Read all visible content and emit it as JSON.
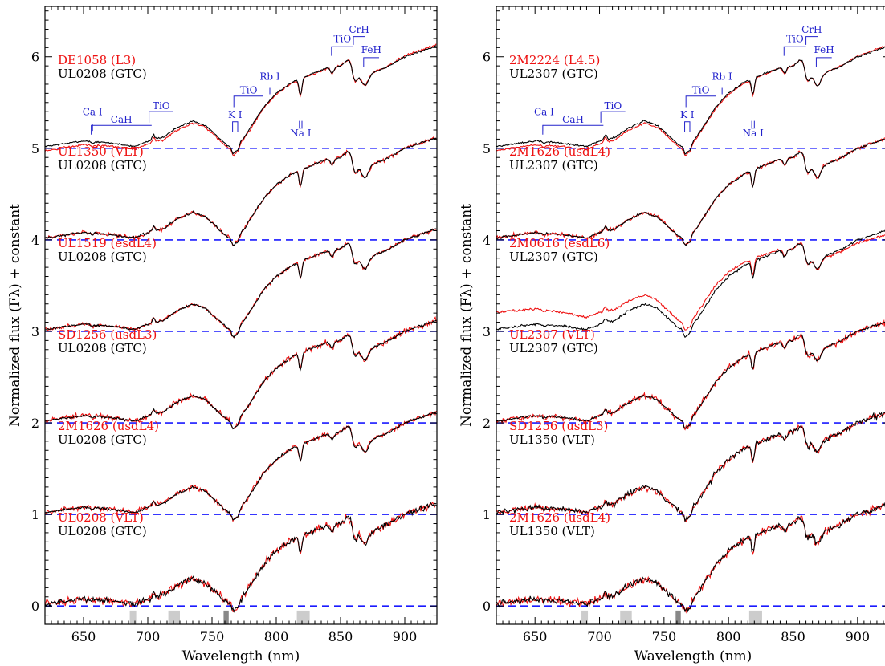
{
  "chart_data": [
    {
      "type": "line",
      "xlabel": "Wavelength (nm)",
      "ylabel": "Normalized flux (Fλ) + constant",
      "xlim": [
        620,
        925
      ],
      "ylim": [
        -0.2,
        6.55
      ],
      "xticks": [
        650,
        700,
        750,
        800,
        850,
        900
      ],
      "yticks": [
        0,
        1,
        2,
        3,
        4,
        5,
        6
      ],
      "telluric_bands": [
        {
          "x0": 686,
          "x1": 691,
          "shade": "light"
        },
        {
          "x0": 716,
          "x1": 725,
          "shade": "light"
        },
        {
          "x0": 759,
          "x1": 763,
          "shade": "dark"
        },
        {
          "x0": 816,
          "x1": 826,
          "shade": "light"
        }
      ],
      "features": [
        {
          "label": "Ca I",
          "type": "tick",
          "x": 657,
          "ylab": 5.36,
          "y1": 5.26,
          "y2": 5.19
        },
        {
          "label": "CaH",
          "type": "bracket",
          "x0": 656,
          "x1": 703,
          "ylab": 5.28,
          "yb": 5.25,
          "y2": 5.15
        },
        {
          "label": "TiO",
          "type": "bracket",
          "x0": 701,
          "x1": 720,
          "ylab": 5.43,
          "yb": 5.4,
          "y2": 5.28
        },
        {
          "label": "K I",
          "type": "double",
          "x0": 766,
          "x1": 770,
          "ylab": 5.33,
          "yb": 5.29,
          "y2": 5.18
        },
        {
          "label": "TiO",
          "type": "bracket",
          "x0": 767,
          "x1": 790,
          "ylab": 5.6,
          "yb": 5.57,
          "y2": 5.45
        },
        {
          "label": "Rb I",
          "type": "tick",
          "x": 795,
          "ylab": 5.75,
          "y1": 5.66,
          "y2": 5.59
        },
        {
          "label": "Na I",
          "type": "double-down",
          "x0": 818,
          "x1": 820,
          "ylab": 5.13,
          "yb": 5.3,
          "y2": 5.22
        },
        {
          "label": "TiO",
          "type": "bracket",
          "x0": 843,
          "x1": 860,
          "ylab": 6.16,
          "yb": 6.11,
          "y2": 6.01
        },
        {
          "label": "CrH",
          "type": "bracket",
          "x0": 860,
          "x1": 869,
          "ylab": 6.26,
          "yb": 6.22,
          "y2": 6.13
        },
        {
          "label": "FeH",
          "type": "bracket",
          "x0": 868,
          "x1": 880,
          "ylab": 6.04,
          "yb": 5.99,
          "y2": 5.89
        }
      ],
      "pairs": [
        {
          "offset": 5,
          "red": "DE1058 (L3)",
          "black": "UL0208 (GTC)"
        },
        {
          "offset": 4,
          "red": "UL1350 (VLT)",
          "black": "UL0208 (GTC)"
        },
        {
          "offset": 3,
          "red": "UL1519 (esdL4)",
          "black": "UL0208 (GTC)"
        },
        {
          "offset": 2,
          "red": "SD1256 (usdL3)",
          "black": "UL0208 (GTC)"
        },
        {
          "offset": 1,
          "red": "2M1626 (usdL4)",
          "black": "UL0208 (GTC)"
        },
        {
          "offset": 0,
          "red": "UL0208 (VLT)",
          "black": "UL0208 (GTC)"
        }
      ]
    },
    {
      "type": "line",
      "xlabel": "Wavelength (nm)",
      "ylabel": "Normalized flux (Fλ) + constant",
      "xlim": [
        620,
        925
      ],
      "ylim": [
        -0.2,
        6.55
      ],
      "xticks": [
        650,
        700,
        750,
        800,
        850,
        900
      ],
      "yticks": [
        0,
        1,
        2,
        3,
        4,
        5,
        6
      ],
      "telluric_bands": [
        {
          "x0": 686,
          "x1": 691,
          "shade": "light"
        },
        {
          "x0": 716,
          "x1": 725,
          "shade": "light"
        },
        {
          "x0": 759,
          "x1": 763,
          "shade": "dark"
        },
        {
          "x0": 816,
          "x1": 826,
          "shade": "light"
        }
      ],
      "features": [
        {
          "label": "Ca I",
          "type": "tick",
          "x": 657,
          "ylab": 5.36,
          "y1": 5.26,
          "y2": 5.19
        },
        {
          "label": "CaH",
          "type": "bracket",
          "x0": 656,
          "x1": 703,
          "ylab": 5.28,
          "yb": 5.25,
          "y2": 5.15
        },
        {
          "label": "TiO",
          "type": "bracket",
          "x0": 701,
          "x1": 720,
          "ylab": 5.43,
          "yb": 5.4,
          "y2": 5.28
        },
        {
          "label": "K I",
          "type": "double",
          "x0": 766,
          "x1": 770,
          "ylab": 5.33,
          "yb": 5.29,
          "y2": 5.18
        },
        {
          "label": "TiO",
          "type": "bracket",
          "x0": 767,
          "x1": 790,
          "ylab": 5.6,
          "yb": 5.57,
          "y2": 5.45
        },
        {
          "label": "Rb I",
          "type": "tick",
          "x": 795,
          "ylab": 5.75,
          "y1": 5.66,
          "y2": 5.59
        },
        {
          "label": "Na I",
          "type": "double-down",
          "x0": 818,
          "x1": 820,
          "ylab": 5.13,
          "yb": 5.3,
          "y2": 5.22
        },
        {
          "label": "TiO",
          "type": "bracket",
          "x0": 843,
          "x1": 860,
          "ylab": 6.16,
          "yb": 6.11,
          "y2": 6.01
        },
        {
          "label": "CrH",
          "type": "bracket",
          "x0": 860,
          "x1": 869,
          "ylab": 6.26,
          "yb": 6.22,
          "y2": 6.13
        },
        {
          "label": "FeH",
          "type": "bracket",
          "x0": 868,
          "x1": 880,
          "ylab": 6.04,
          "yb": 5.99,
          "y2": 5.89
        }
      ],
      "pairs": [
        {
          "offset": 5,
          "red": "2M2224 (L4.5)",
          "black": "UL2307 (GTC)"
        },
        {
          "offset": 4,
          "red": "2M1626 (usdL4)",
          "black": "UL2307 (GTC)"
        },
        {
          "offset": 3,
          "red": "2M0616 (esdL6)",
          "black": "UL2307 (GTC)"
        },
        {
          "offset": 2,
          "red": "UL2307 (VLT)",
          "black": "UL2307 (GTC)"
        },
        {
          "offset": 1,
          "red": "SD1256 (usdL3)",
          "black": "UL1350 (VLT)"
        },
        {
          "offset": 0,
          "red": "2M1626 (usdL4)",
          "black": "UL1350 (VLT)"
        }
      ]
    }
  ],
  "colors": {
    "red_series": "#ee1111",
    "black_series": "#000000",
    "baseline": "#1a1aff",
    "feature_labels": "#2222cc",
    "telluric_light": "#cccccc",
    "telluric_dark": "#888888"
  }
}
